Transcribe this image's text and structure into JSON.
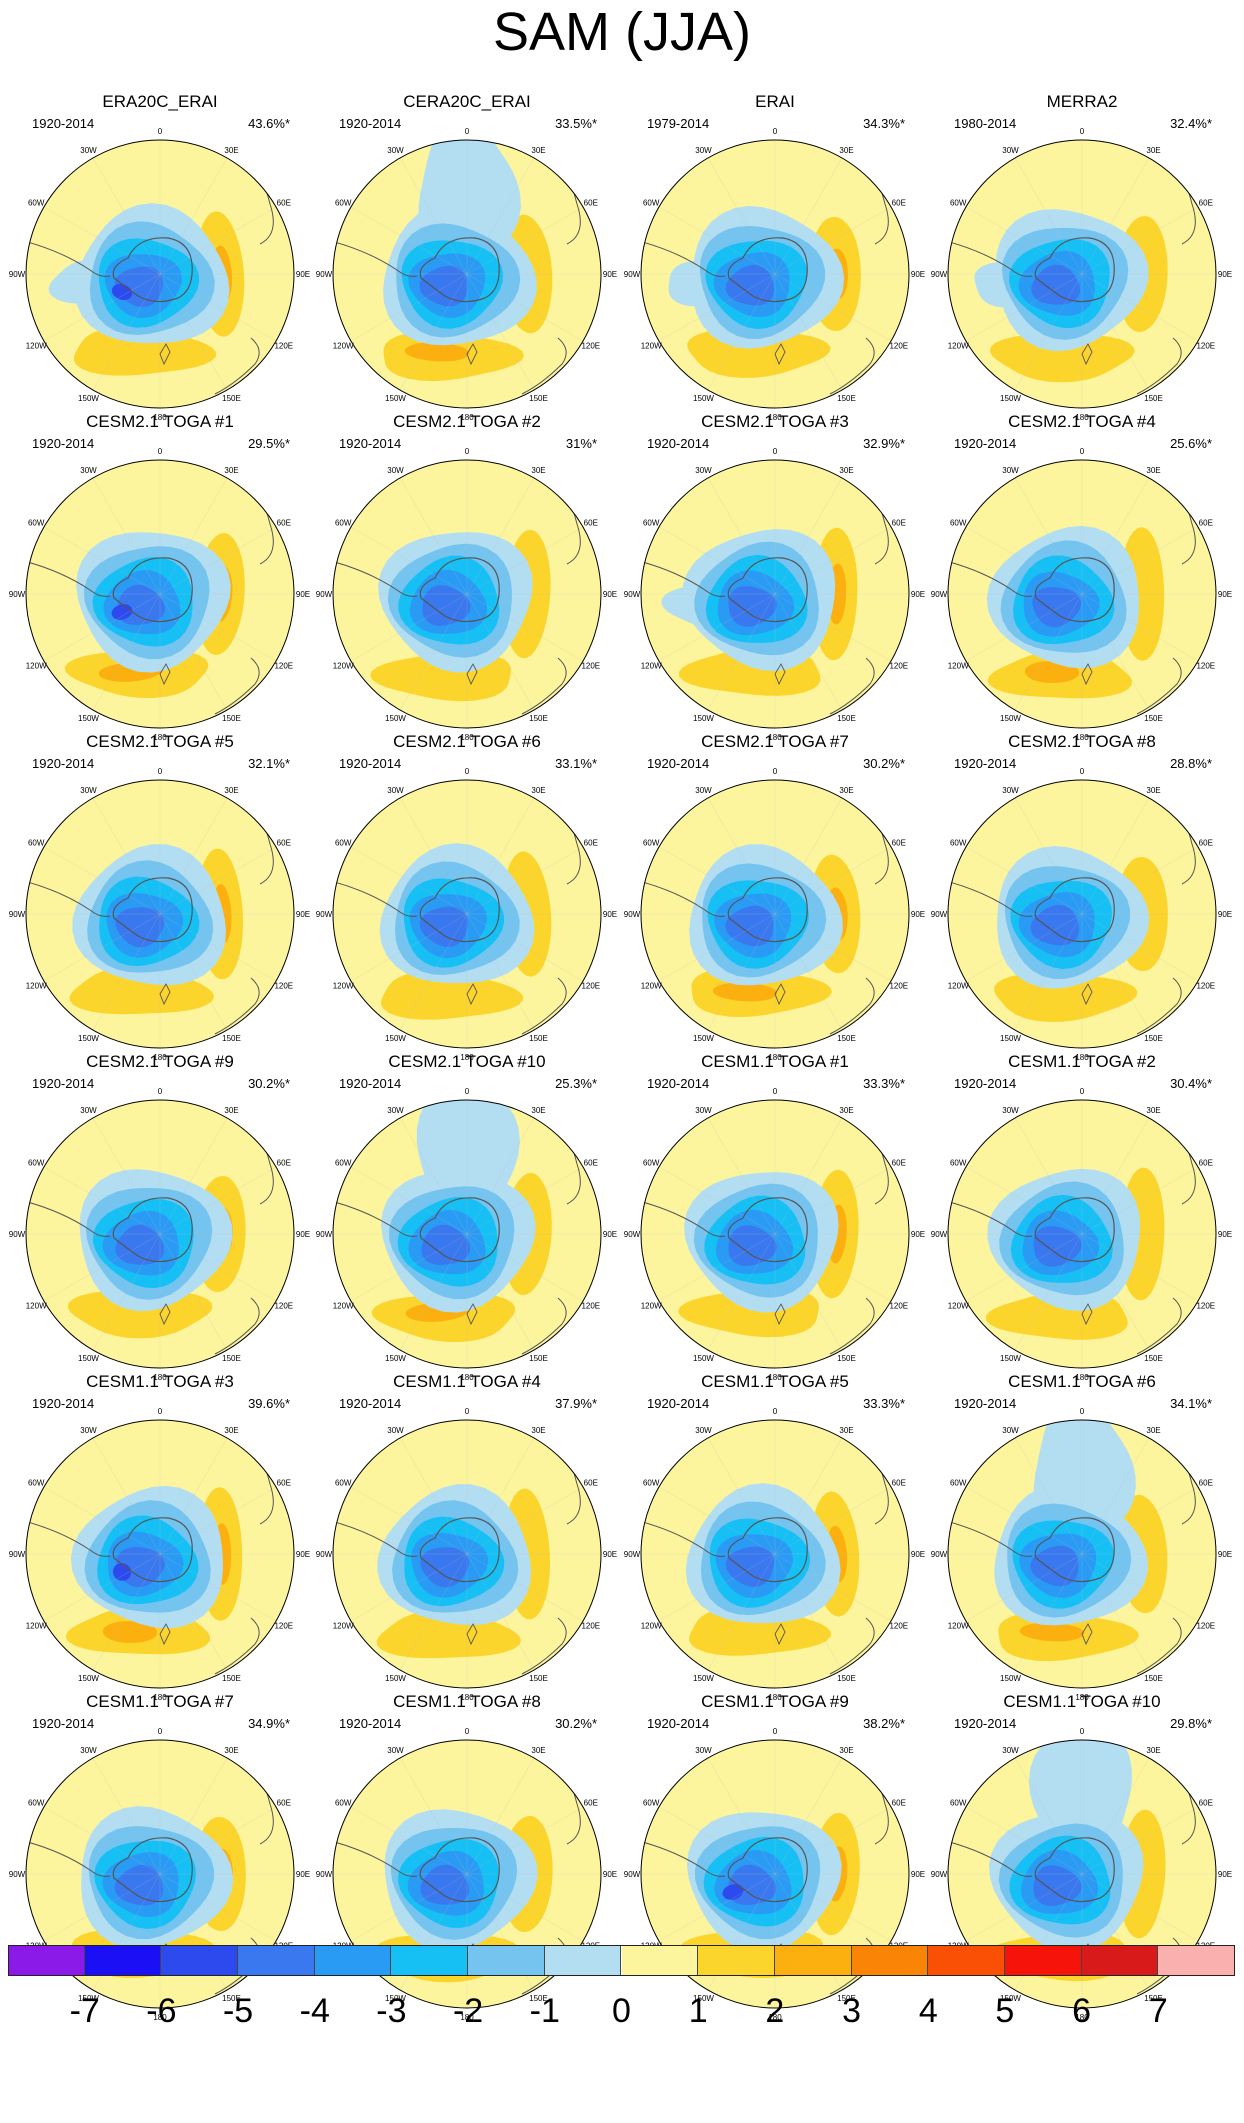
{
  "title": "SAM (JJA)",
  "longitude_labels": [
    "0",
    "30E",
    "60E",
    "90E",
    "120E",
    "150E",
    "180",
    "150W",
    "120W",
    "90W",
    "60W",
    "30W"
  ],
  "panels": [
    {
      "title": "ERA20C_ERAI",
      "period": "1920-2014",
      "pct": "43.6%*"
    },
    {
      "title": "CERA20C_ERAI",
      "period": "1920-2014",
      "pct": "33.5%*"
    },
    {
      "title": "ERAI",
      "period": "1979-2014",
      "pct": "34.3%*"
    },
    {
      "title": "MERRA2",
      "period": "1980-2014",
      "pct": "32.4%*"
    },
    {
      "title": "CESM2.1 TOGA #1",
      "period": "1920-2014",
      "pct": "29.5%*"
    },
    {
      "title": "CESM2.1 TOGA #2",
      "period": "1920-2014",
      "pct": "31%*"
    },
    {
      "title": "CESM2.1 TOGA #3",
      "period": "1920-2014",
      "pct": "32.9%*"
    },
    {
      "title": "CESM2.1 TOGA #4",
      "period": "1920-2014",
      "pct": "25.6%*"
    },
    {
      "title": "CESM2.1 TOGA #5",
      "period": "1920-2014",
      "pct": "32.1%*"
    },
    {
      "title": "CESM2.1 TOGA #6",
      "period": "1920-2014",
      "pct": "33.1%*"
    },
    {
      "title": "CESM2.1 TOGA #7",
      "period": "1920-2014",
      "pct": "30.2%*"
    },
    {
      "title": "CESM2.1 TOGA #8",
      "period": "1920-2014",
      "pct": "28.8%*"
    },
    {
      "title": "CESM2.1 TOGA #9",
      "period": "1920-2014",
      "pct": "30.2%*"
    },
    {
      "title": "CESM2.1 TOGA #10",
      "period": "1920-2014",
      "pct": "25.3%*"
    },
    {
      "title": "CESM1.1 TOGA #1",
      "period": "1920-2014",
      "pct": "33.3%*"
    },
    {
      "title": "CESM1.1 TOGA #2",
      "period": "1920-2014",
      "pct": "30.4%*"
    },
    {
      "title": "CESM1.1 TOGA #3",
      "period": "1920-2014",
      "pct": "39.6%*"
    },
    {
      "title": "CESM1.1 TOGA #4",
      "period": "1920-2014",
      "pct": "37.9%*"
    },
    {
      "title": "CESM1.1 TOGA #5",
      "period": "1920-2014",
      "pct": "33.3%*"
    },
    {
      "title": "CESM1.1 TOGA #6",
      "period": "1920-2014",
      "pct": "34.1%*"
    },
    {
      "title": "CESM1.1 TOGA #7",
      "period": "1920-2014",
      "pct": "34.9%*"
    },
    {
      "title": "CESM1.1 TOGA #8",
      "period": "1920-2014",
      "pct": "30.2%*"
    },
    {
      "title": "CESM1.1 TOGA #9",
      "period": "1920-2014",
      "pct": "38.2%*"
    },
    {
      "title": "CESM1.1 TOGA #10",
      "period": "1920-2014",
      "pct": "29.8%*"
    }
  ],
  "colorbar": {
    "ticks": [
      "-7",
      "-6",
      "-5",
      "-4",
      "-3",
      "-2",
      "-1",
      "0",
      "1",
      "2",
      "3",
      "4",
      "5",
      "6",
      "7"
    ],
    "colors": [
      "#8b1ae8",
      "#1a0ff5",
      "#2d4aef",
      "#3a78ef",
      "#2a9bf5",
      "#16c0f5",
      "#74c4ef",
      "#b3def2",
      "#fcf59e",
      "#fcd52c",
      "#fbb00f",
      "#fa8405",
      "#fa5005",
      "#f5130a",
      "#d81a1a",
      "#fbb0b0"
    ]
  },
  "colors": {
    "yellow": "#fcf59e",
    "land": "#666666"
  }
}
